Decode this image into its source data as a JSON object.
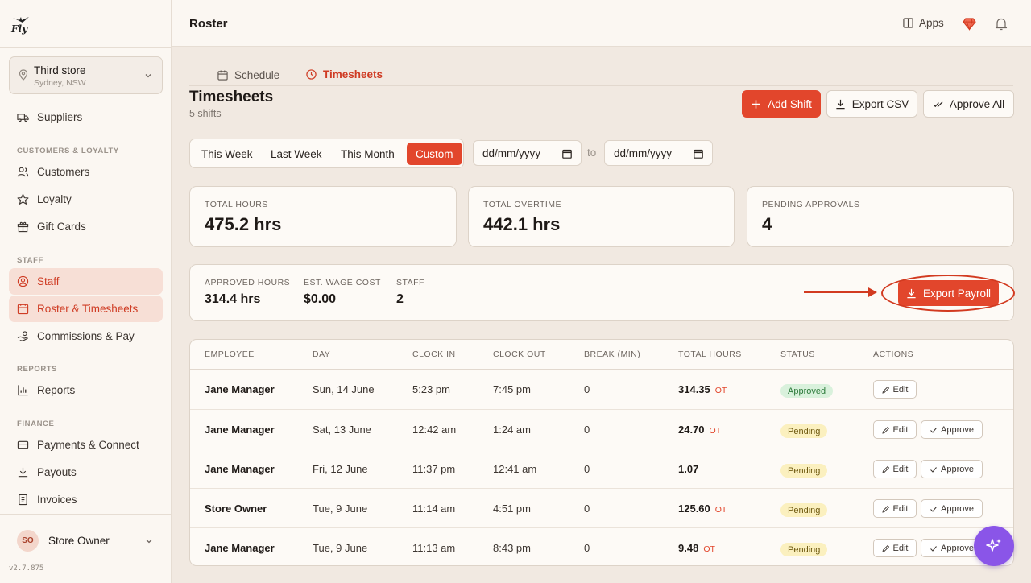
{
  "brand": {
    "logo_text": "Fly"
  },
  "header": {
    "title": "Roster",
    "apps_label": "Apps"
  },
  "store": {
    "name": "Third store",
    "location": "Sydney, NSW"
  },
  "sidebar": {
    "suppliers": "Suppliers",
    "section_customers": "CUSTOMERS & LOYALTY",
    "customers": "Customers",
    "loyalty": "Loyalty",
    "gift_cards": "Gift Cards",
    "section_staff": "STAFF",
    "staff": "Staff",
    "roster": "Roster & Timesheets",
    "commissions": "Commissions & Pay",
    "section_reports": "REPORTS",
    "reports": "Reports",
    "section_finance": "FINANCE",
    "payments": "Payments & Connect",
    "payouts": "Payouts",
    "invoices": "Invoices"
  },
  "user": {
    "initials": "SO",
    "name": "Store Owner",
    "version": "v2.7.875"
  },
  "tabs": {
    "schedule": "Schedule",
    "timesheets": "Timesheets"
  },
  "page": {
    "heading": "Timesheets",
    "subheading": "5 shifts"
  },
  "actions": {
    "add_shift": "Add Shift",
    "export_csv": "Export CSV",
    "approve_all": "Approve All",
    "export_payroll": "Export Payroll"
  },
  "range": {
    "this_week": "This Week",
    "last_week": "Last Week",
    "this_month": "This Month",
    "custom": "Custom",
    "selected": "Custom"
  },
  "dates": {
    "from_placeholder": "dd/mm/yyyy",
    "to_label": "to",
    "to_placeholder": "dd/mm/yyyy"
  },
  "stats": {
    "total_hours_label": "TOTAL HOURS",
    "total_hours": "475.2 hrs",
    "total_overtime_label": "TOTAL OVERTIME",
    "total_overtime": "442.1 hrs",
    "pending_label": "PENDING APPROVALS",
    "pending": "4"
  },
  "summary": {
    "approved_label": "APPROVED HOURS",
    "approved": "314.4 hrs",
    "wage_label": "EST. WAGE COST",
    "wage": "$0.00",
    "staff_label": "STAFF",
    "staff": "2"
  },
  "table": {
    "headers": {
      "employee": "EMPLOYEE",
      "day": "DAY",
      "clock_in": "CLOCK IN",
      "clock_out": "CLOCK OUT",
      "break": "BREAK (MIN)",
      "total_hours": "TOTAL HOURS",
      "status": "STATUS",
      "actions": "ACTIONS"
    },
    "edit_label": "Edit",
    "approve_label": "Approve",
    "ot_label": "OT",
    "rows": [
      {
        "employee": "Jane Manager",
        "day": "Sun, 14 June",
        "clock_in": "5:23 pm",
        "clock_out": "7:45 pm",
        "break": "0",
        "total": "314.35",
        "ot": "OT",
        "status": "Approved"
      },
      {
        "employee": "Jane Manager",
        "day": "Sat, 13 June",
        "clock_in": "12:42 am",
        "clock_out": "1:24 am",
        "break": "0",
        "total": "24.70",
        "ot": "OT",
        "status": "Pending"
      },
      {
        "employee": "Jane Manager",
        "day": "Fri, 12 June",
        "clock_in": "11:37 pm",
        "clock_out": "12:41 am",
        "break": "0",
        "total": "1.07",
        "ot": "",
        "status": "Pending"
      },
      {
        "employee": "Store Owner",
        "day": "Tue, 9 June",
        "clock_in": "11:14 am",
        "clock_out": "4:51 pm",
        "break": "0",
        "total": "125.60",
        "ot": "OT",
        "status": "Pending"
      },
      {
        "employee": "Jane Manager",
        "day": "Tue, 9 June",
        "clock_in": "11:13 am",
        "clock_out": "8:43 pm",
        "break": "0",
        "total": "9.48",
        "ot": "OT",
        "status": "Pending"
      }
    ]
  },
  "colors": {
    "accent": "#e2462c",
    "approved_bg": "#d9f1dc",
    "pending_bg": "#fbf0bf",
    "ai_fab": "#8a55e8"
  }
}
